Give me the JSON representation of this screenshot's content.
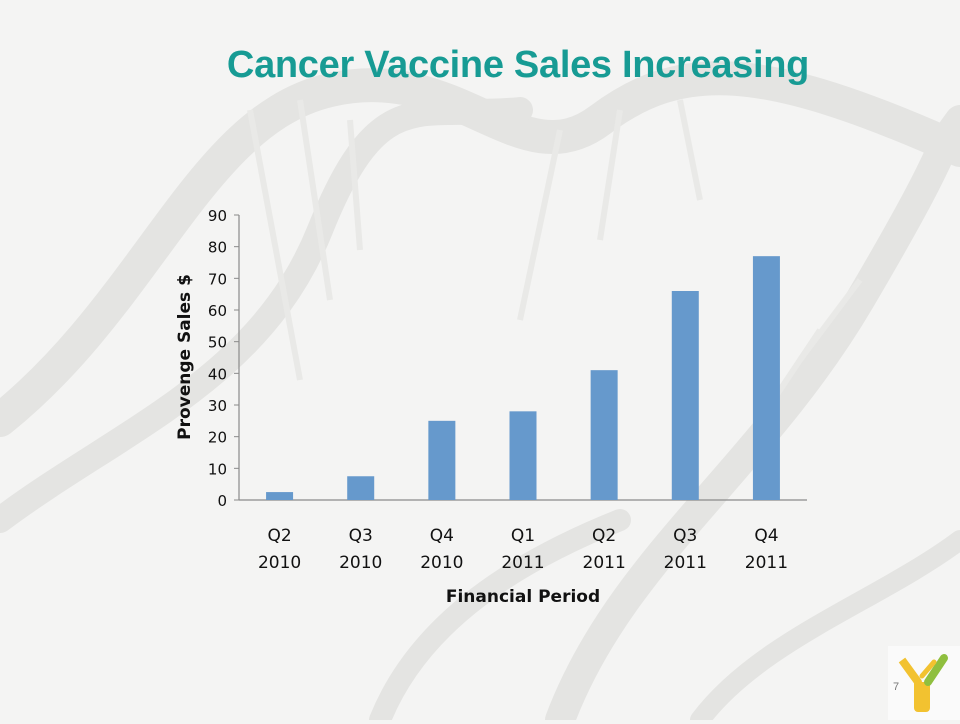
{
  "slide": {
    "title": "Cancer Vaccine Sales Increasing",
    "page_number": "7"
  },
  "colors": {
    "title": "#179b94",
    "bar": "#6699cc",
    "logo_primary": "#f2c230",
    "logo_secondary": "#8fbf3f"
  },
  "chart_data": {
    "type": "bar",
    "categories": [
      [
        "Q2",
        "2010"
      ],
      [
        "Q3",
        "2010"
      ],
      [
        "Q4",
        "2010"
      ],
      [
        "Q1",
        "2011"
      ],
      [
        "Q2",
        "2011"
      ],
      [
        "Q3",
        "2011"
      ],
      [
        "Q4",
        "2011"
      ]
    ],
    "values": [
      2.5,
      7.5,
      25,
      28,
      41,
      66,
      77
    ],
    "xlabel": "Financial Period",
    "ylabel": "Provenge Sales $",
    "ylim": [
      0,
      90
    ],
    "yticks": [
      0,
      10,
      20,
      30,
      40,
      50,
      60,
      70,
      80,
      90
    ],
    "grid": false,
    "legend": "none"
  }
}
